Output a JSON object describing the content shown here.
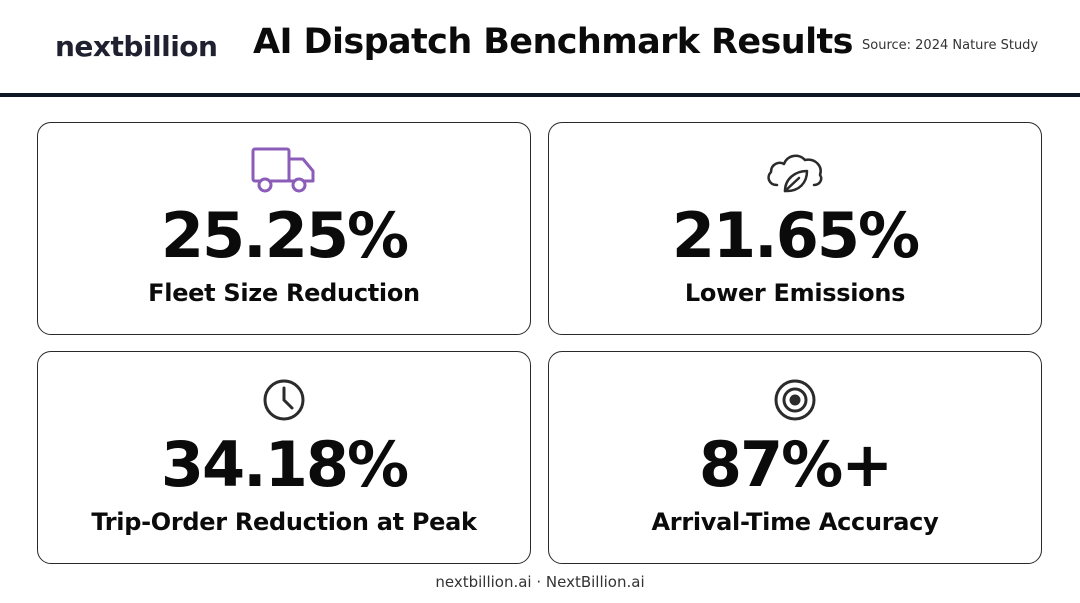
{
  "header": {
    "logo": "nextbillion",
    "title": "AI Dispatch Benchmark Results",
    "source": "Source: 2024 Nature Study"
  },
  "metrics": [
    {
      "value": "25.25%",
      "label": "Fleet Size Reduction",
      "icon": "truck-icon",
      "icon_color": "#8b5cb8"
    },
    {
      "value": "21.65%",
      "label": "Lower Emissions",
      "icon": "cloud-leaf-icon",
      "icon_color": "#2b2b2b"
    },
    {
      "value": "34.18%",
      "label": "Trip-Order Reduction at Peak",
      "icon": "clock-icon",
      "icon_color": "#2b2b2b"
    },
    {
      "value": "87%+",
      "label": "Arrival-Time Accuracy",
      "icon": "target-icon",
      "icon_color": "#2b2b2b"
    }
  ],
  "footer": {
    "text": "nextbillion.ai · NextBillion.ai"
  },
  "colors": {
    "divider": "#0d1726",
    "text": "#0b0b0b",
    "accent": "#8b5cb8"
  }
}
